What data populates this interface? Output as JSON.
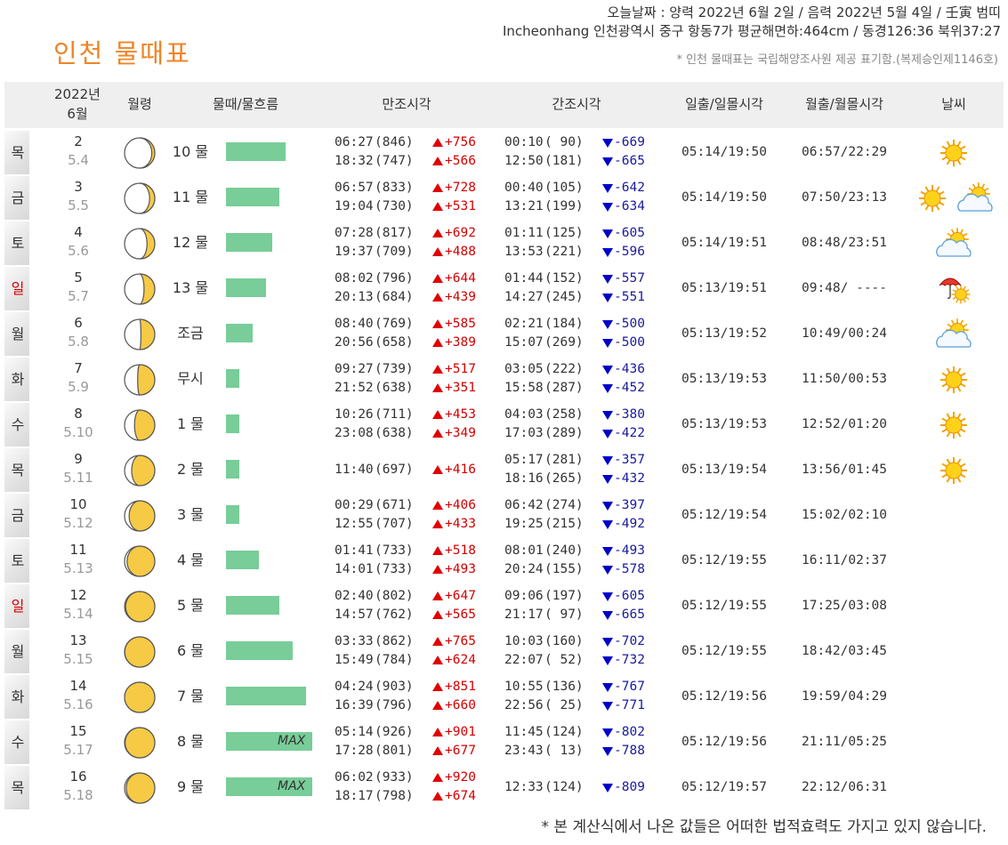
{
  "header": {
    "date_line": "오늘날짜 : 양력 2022년 6월 2일 / 음력 2022년 5월 4일 / 壬寅 범띠",
    "location_line": "Incheonhang 인천광역시 중구 항동7가 평균해면하:464cm / 동경126:36 북위37:27",
    "title": "인천 물때표",
    "note": "* 인천 물때표는 국립해양조사원 제공 표기함.(복제승인제1146호)"
  },
  "table": {
    "header": {
      "year": "2022년",
      "month": "6월",
      "columns": [
        "월령",
        "물때/물흐름",
        "만조시각",
        "간조시각",
        "일출/일몰시각",
        "월출/월몰시각",
        "날씨"
      ]
    },
    "flow_color": "#78cd99",
    "rows": [
      {
        "weekday": "목",
        "day": 2,
        "lunar": "5.4",
        "tide_label": "10 물",
        "flow": 69,
        "high": [
          {
            "time": "06:27",
            "level": "(846)",
            "diff": "+756"
          },
          {
            "time": "18:32",
            "level": "(747)",
            "diff": "+566"
          }
        ],
        "low": [
          {
            "time": "00:10",
            "level": "( 90)",
            "diff": "-669"
          },
          {
            "time": "12:50",
            "level": "(181)",
            "diff": "-665"
          }
        ],
        "sun": "05:14/19:50",
        "moon": "06:57/22:29",
        "weather": [
          "sun"
        ]
      },
      {
        "weekday": "금",
        "day": 3,
        "lunar": "5.5",
        "tide_label": "11 물",
        "flow": 62,
        "high": [
          {
            "time": "06:57",
            "level": "(833)",
            "diff": "+728"
          },
          {
            "time": "19:04",
            "level": "(730)",
            "diff": "+531"
          }
        ],
        "low": [
          {
            "time": "00:40",
            "level": "(105)",
            "diff": "-642"
          },
          {
            "time": "13:21",
            "level": "(199)",
            "diff": "-634"
          }
        ],
        "sun": "05:14/19:50",
        "moon": "07:50/23:13",
        "weather": [
          "sun",
          "partly"
        ]
      },
      {
        "weekday": "토",
        "day": 4,
        "lunar": "5.6",
        "tide_label": "12 물",
        "flow": 54,
        "high": [
          {
            "time": "07:28",
            "level": "(817)",
            "diff": "+692"
          },
          {
            "time": "19:37",
            "level": "(709)",
            "diff": "+488"
          }
        ],
        "low": [
          {
            "time": "01:11",
            "level": "(125)",
            "diff": "-605"
          },
          {
            "time": "13:53",
            "level": "(221)",
            "diff": "-596"
          }
        ],
        "sun": "05:14/19:51",
        "moon": "08:48/23:51",
        "weather": [
          "partly"
        ]
      },
      {
        "weekday": "일",
        "day": 5,
        "lunar": "5.7",
        "tide_label": "13 물",
        "flow": 46,
        "sunday": true,
        "high": [
          {
            "time": "08:02",
            "level": "(796)",
            "diff": "+644"
          },
          {
            "time": "20:13",
            "level": "(684)",
            "diff": "+439"
          }
        ],
        "low": [
          {
            "time": "01:44",
            "level": "(152)",
            "diff": "-557"
          },
          {
            "time": "14:27",
            "level": "(245)",
            "diff": "-551"
          }
        ],
        "sun": "05:13/19:51",
        "moon": "09:48/ ----",
        "weather": [
          "rain"
        ]
      },
      {
        "weekday": "월",
        "day": 6,
        "lunar": "5.8",
        "tide_label": "조금",
        "flow": 31,
        "high": [
          {
            "time": "08:40",
            "level": "(769)",
            "diff": "+585"
          },
          {
            "time": "20:56",
            "level": "(658)",
            "diff": "+389"
          }
        ],
        "low": [
          {
            "time": "02:21",
            "level": "(184)",
            "diff": "-500"
          },
          {
            "time": "15:07",
            "level": "(269)",
            "diff": "-500"
          }
        ],
        "sun": "05:13/19:52",
        "moon": "10:49/00:24",
        "weather": [
          "partly"
        ]
      },
      {
        "weekday": "화",
        "day": 7,
        "lunar": "5.9",
        "tide_label": "무시",
        "flow": 15,
        "high": [
          {
            "time": "09:27",
            "level": "(739)",
            "diff": "+517"
          },
          {
            "time": "21:52",
            "level": "(638)",
            "diff": "+351"
          }
        ],
        "low": [
          {
            "time": "03:05",
            "level": "(222)",
            "diff": "-436"
          },
          {
            "time": "15:58",
            "level": "(287)",
            "diff": "-452"
          }
        ],
        "sun": "05:13/19:53",
        "moon": "11:50/00:53",
        "weather": [
          "sun"
        ]
      },
      {
        "weekday": "수",
        "day": 8,
        "lunar": "5.10",
        "tide_label": "1 물",
        "flow": 15,
        "high": [
          {
            "time": "10:26",
            "level": "(711)",
            "diff": "+453"
          },
          {
            "time": "23:08",
            "level": "(638)",
            "diff": "+349"
          }
        ],
        "low": [
          {
            "time": "04:03",
            "level": "(258)",
            "diff": "-380"
          },
          {
            "time": "17:03",
            "level": "(289)",
            "diff": "-422"
          }
        ],
        "sun": "05:13/19:53",
        "moon": "12:52/01:20",
        "weather": [
          "sun"
        ]
      },
      {
        "weekday": "목",
        "day": 9,
        "lunar": "5.11",
        "tide_label": "2 물",
        "flow": 15,
        "high": [
          {
            "time": "11:40",
            "level": "(697)",
            "diff": "+416"
          }
        ],
        "low": [
          {
            "time": "05:17",
            "level": "(281)",
            "diff": "-357"
          },
          {
            "time": "18:16",
            "level": "(265)",
            "diff": "-432"
          }
        ],
        "sun": "05:13/19:54",
        "moon": "13:56/01:45",
        "weather": [
          "sun"
        ]
      },
      {
        "weekday": "금",
        "day": 10,
        "lunar": "5.12",
        "tide_label": "3 물",
        "flow": 15,
        "high": [
          {
            "time": "00:29",
            "level": "(671)",
            "diff": "+406"
          },
          {
            "time": "12:55",
            "level": "(707)",
            "diff": "+433"
          }
        ],
        "low": [
          {
            "time": "06:42",
            "level": "(274)",
            "diff": "-397"
          },
          {
            "time": "19:25",
            "level": "(215)",
            "diff": "-492"
          }
        ],
        "sun": "05:12/19:54",
        "moon": "15:02/02:10",
        "weather": []
      },
      {
        "weekday": "토",
        "day": 11,
        "lunar": "5.13",
        "tide_label": "4 물",
        "flow": 38,
        "high": [
          {
            "time": "01:41",
            "level": "(733)",
            "diff": "+518"
          },
          {
            "time": "14:01",
            "level": "(733)",
            "diff": "+493"
          }
        ],
        "low": [
          {
            "time": "08:01",
            "level": "(240)",
            "diff": "-493"
          },
          {
            "time": "20:24",
            "level": "(155)",
            "diff": "-578"
          }
        ],
        "sun": "05:12/19:55",
        "moon": "16:11/02:37",
        "weather": []
      },
      {
        "weekday": "일",
        "day": 12,
        "lunar": "5.14",
        "tide_label": "5 물",
        "flow": 62,
        "sunday": true,
        "high": [
          {
            "time": "02:40",
            "level": "(802)",
            "diff": "+647"
          },
          {
            "time": "14:57",
            "level": "(762)",
            "diff": "+565"
          }
        ],
        "low": [
          {
            "time": "09:06",
            "level": "(197)",
            "diff": "-605"
          },
          {
            "time": "21:17",
            "level": "( 97)",
            "diff": "-665"
          }
        ],
        "sun": "05:12/19:55",
        "moon": "17:25/03:08",
        "weather": []
      },
      {
        "weekday": "월",
        "day": 13,
        "lunar": "5.15",
        "tide_label": "6 물",
        "flow": 77,
        "high": [
          {
            "time": "03:33",
            "level": "(862)",
            "diff": "+765"
          },
          {
            "time": "15:49",
            "level": "(784)",
            "diff": "+624"
          }
        ],
        "low": [
          {
            "time": "10:03",
            "level": "(160)",
            "diff": "-702"
          },
          {
            "time": "22:07",
            "level": "( 52)",
            "diff": "-732"
          }
        ],
        "sun": "05:12/19:55",
        "moon": "18:42/03:45",
        "weather": []
      },
      {
        "weekday": "화",
        "day": 14,
        "lunar": "5.16",
        "tide_label": "7 물",
        "flow": 93,
        "high": [
          {
            "time": "04:24",
            "level": "(903)",
            "diff": "+851"
          },
          {
            "time": "16:39",
            "level": "(796)",
            "diff": "+660"
          }
        ],
        "low": [
          {
            "time": "10:55",
            "level": "(136)",
            "diff": "-767"
          },
          {
            "time": "22:56",
            "level": "( 25)",
            "diff": "-771"
          }
        ],
        "sun": "05:12/19:56",
        "moon": "19:59/04:29",
        "weather": []
      },
      {
        "weekday": "수",
        "day": 15,
        "lunar": "5.17",
        "tide_label": "8 물",
        "flow": 100,
        "flow_label": "MAX",
        "high": [
          {
            "time": "05:14",
            "level": "(926)",
            "diff": "+901"
          },
          {
            "time": "17:28",
            "level": "(801)",
            "diff": "+677"
          }
        ],
        "low": [
          {
            "time": "11:45",
            "level": "(124)",
            "diff": "-802"
          },
          {
            "time": "23:43",
            "level": "( 13)",
            "diff": "-788"
          }
        ],
        "sun": "05:12/19:56",
        "moon": "21:11/05:25",
        "weather": []
      },
      {
        "weekday": "목",
        "day": 16,
        "lunar": "5.18",
        "tide_label": "9 물",
        "flow": 100,
        "flow_label": "MAX",
        "high": [
          {
            "time": "06:02",
            "level": "(933)",
            "diff": "+920"
          },
          {
            "time": "18:17",
            "level": "(798)",
            "diff": "+674"
          }
        ],
        "low": [
          {
            "time": "12:33",
            "level": "(124)",
            "diff": "-809"
          }
        ],
        "sun": "05:12/19:57",
        "moon": "22:12/06:31",
        "weather": []
      }
    ]
  },
  "footer": "* 본 계산식에서 나온 값들은 어떠한 법적효력도 가지고 있지 않습니다."
}
